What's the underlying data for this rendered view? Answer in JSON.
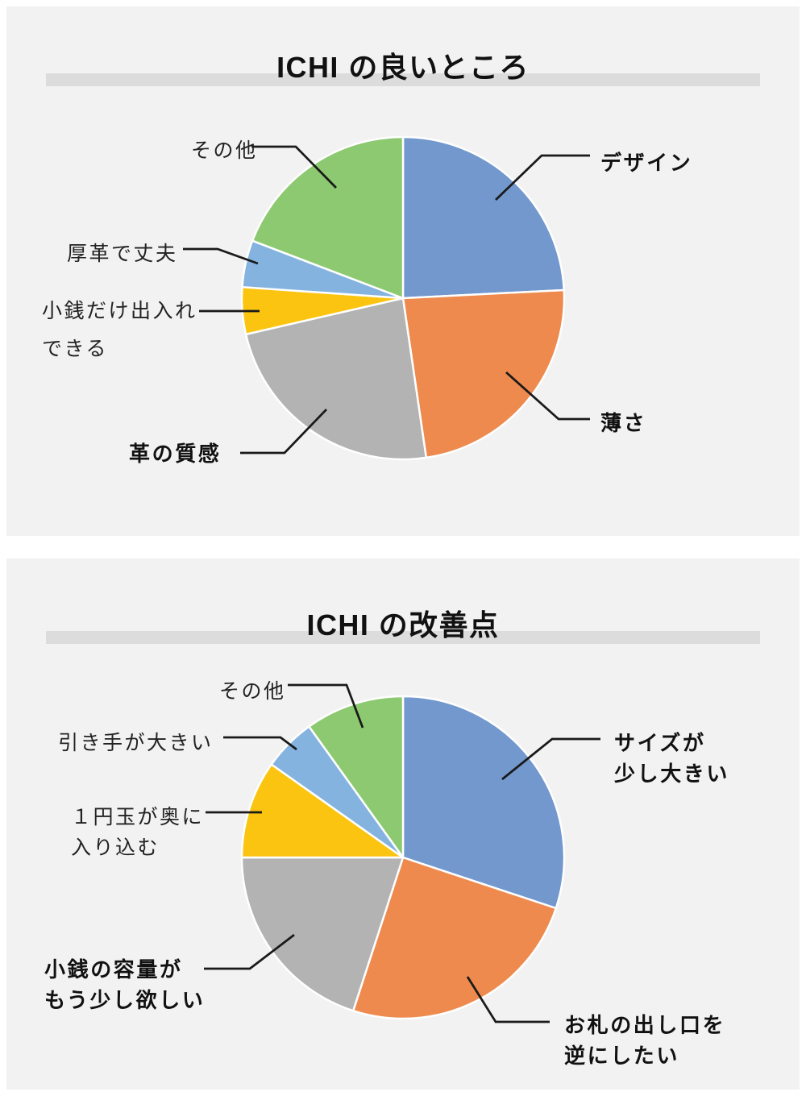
{
  "page": {
    "background_color": "#ffffff",
    "panel_color": "#f2f2f2",
    "title_bar_color": "#dcdcdc",
    "text_color": "#1f1f1f",
    "leader_line_color": "#1a1a1a"
  },
  "charts": [
    {
      "title": "ICHI の良いところ",
      "chart_data": {
        "type": "pie",
        "start_angle_deg": 0,
        "direction": "clockwise",
        "legend_position": "callout-labels",
        "categories": [
          "デザイン",
          "薄さ",
          "革の質感",
          "小銭だけ出入れできる",
          "厚革で丈夫",
          "その他"
        ],
        "values": [
          24.2,
          23.5,
          23.7,
          4.7,
          4.7,
          19.2
        ],
        "colors": [
          "#7398ce",
          "#ee8a4e",
          "#b3b3b3",
          "#fbc410",
          "#85b3e0",
          "#8cc970"
        ]
      },
      "callouts": [
        {
          "lines": [
            "デザイン"
          ],
          "bold": true
        },
        {
          "lines": [
            "薄さ"
          ],
          "bold": true
        },
        {
          "lines": [
            "革の質感"
          ],
          "bold": true
        },
        {
          "lines": [
            "小銭だけ出入れ",
            "できる"
          ],
          "bold": false
        },
        {
          "lines": [
            "厚革で丈夫"
          ],
          "bold": false
        },
        {
          "lines": [
            "その他"
          ],
          "bold": false
        }
      ]
    },
    {
      "title": "ICHI の改善点",
      "chart_data": {
        "type": "pie",
        "start_angle_deg": 0,
        "direction": "clockwise",
        "legend_position": "callout-labels",
        "categories": [
          "サイズが少し大きい",
          "お札の出し口を逆にしたい",
          "小銭の容量がもう少し欲しい",
          "１円玉が奥に入り込む",
          "引き手が大きい",
          "その他"
        ],
        "values": [
          30.1,
          24.9,
          20.0,
          9.8,
          5.3,
          9.9
        ],
        "colors": [
          "#7398ce",
          "#ee8a4e",
          "#b3b3b3",
          "#fbc410",
          "#85b3e0",
          "#8cc970"
        ]
      },
      "callouts": [
        {
          "lines": [
            "サイズが",
            "少し大きい"
          ],
          "bold": true
        },
        {
          "lines": [
            "お札の出し口を",
            "逆にしたい"
          ],
          "bold": true
        },
        {
          "lines": [
            "小銭の容量が",
            "もう少し欲しい"
          ],
          "bold": true
        },
        {
          "lines": [
            "１円玉が奥に",
            "入り込む"
          ],
          "bold": false
        },
        {
          "lines": [
            "引き手が大きい"
          ],
          "bold": false
        },
        {
          "lines": [
            "その他"
          ],
          "bold": false
        }
      ]
    }
  ]
}
